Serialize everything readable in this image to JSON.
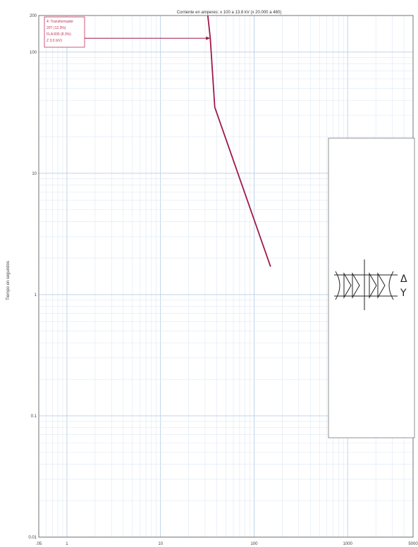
{
  "chart_data": {
    "type": "line",
    "title": "Corriente en amperes: x 100 a 13.8 kV (x 20.000 a 480)",
    "ylabel": "Tiempo en segundos",
    "xlabel": "",
    "x_scale": "log",
    "y_scale": "log",
    "xlim": [
      0.5,
      5000
    ],
    "ylim": [
      0.01,
      200
    ],
    "x_tick_labels": [
      ".05",
      "1",
      "10",
      "100",
      "1000",
      "5000"
    ],
    "y_tick_labels": [
      "200",
      "100",
      "10",
      "1",
      "0.1",
      "0.01"
    ],
    "grid": true,
    "legend": {
      "position": "top-left",
      "lines": [
        "4: Transformador",
        "20T (12.3%)",
        "FLA 835 (8.3%)",
        "Z 3.0 (kV)"
      ]
    },
    "series": [
      {
        "color": "#a01848",
        "x": [
          32,
          34,
          38,
          150
        ],
        "y": [
          200,
          130,
          35,
          1.7
        ]
      }
    ],
    "annotation": {
      "type": "inrush-arrow",
      "y": 130,
      "x_from": 1,
      "x_to": 34
    },
    "symbol": {
      "icon": "transformer-winding-icon",
      "label_delta": "Δ",
      "label_wye": "Y"
    }
  }
}
